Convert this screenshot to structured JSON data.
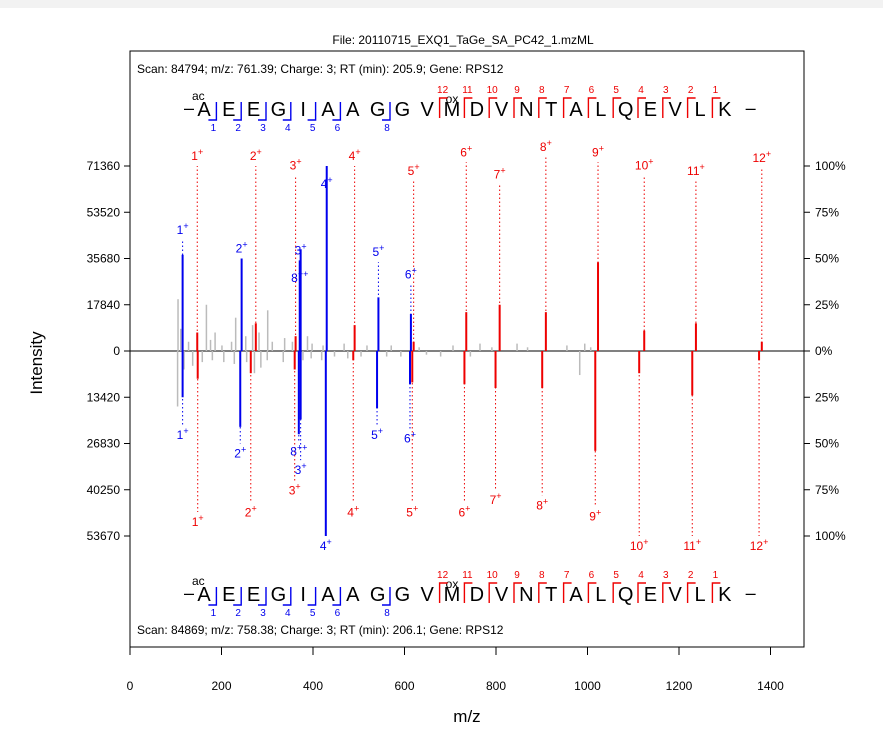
{
  "chart_data": {
    "type": "mirror_spectrum",
    "title": "File: 20110715_EXQ1_TaGe_SA_PC42_1.mzML",
    "xlabel": "m/z",
    "ylabel": "Intensity",
    "xlim": [
      0,
      1480
    ],
    "xticks": [
      0,
      200,
      400,
      600,
      800,
      1000,
      1200,
      1400
    ],
    "top": {
      "scan_info": "Scan: 84794; m/z: 761.39; Charge: 3; RT (min): 205.9; Gene: RPS12",
      "ymax": 71360,
      "left_ticks": [
        {
          "label": "71360",
          "frac": 1.0
        },
        {
          "label": "53520",
          "frac": 0.75
        },
        {
          "label": "35680",
          "frac": 0.5
        },
        {
          "label": "17840",
          "frac": 0.25
        },
        {
          "label": "0",
          "frac": 0
        }
      ],
      "b_ions": [
        {
          "label": "1+",
          "mz": 115,
          "frac": 0.52,
          "ann_frac": 0.6
        },
        {
          "label": "2+",
          "mz": 244,
          "frac": 0.5,
          "ann_frac": 0.5
        },
        {
          "label": "3+",
          "mz": 373,
          "frac": 0.55,
          "ann_frac": 0.49,
          "dup": true
        },
        {
          "label": "8++",
          "mz": 371,
          "frac": 0.49,
          "ann_frac": 0.34
        },
        {
          "label": "4+",
          "mz": 430,
          "frac": 1.0,
          "ann_frac": 0.85
        },
        {
          "label": "5+",
          "mz": 543,
          "frac": 0.29,
          "ann_frac": 0.48
        },
        {
          "label": "6+",
          "mz": 614,
          "frac": 0.2,
          "ann_frac": 0.36
        }
      ],
      "y_ions": [
        {
          "label": "1+",
          "mz": 147,
          "ann_frac": 1.0,
          "frac": 0.1
        },
        {
          "label": "2+",
          "mz": 275,
          "ann_frac": 1.0,
          "frac": 0.15
        },
        {
          "label": "3+",
          "mz": 362,
          "ann_frac": 0.95,
          "frac": 0.08
        },
        {
          "label": "4+",
          "mz": 491,
          "ann_frac": 1.0,
          "frac": 0.14
        },
        {
          "label": "5+",
          "mz": 620,
          "ann_frac": 0.92,
          "frac": 0.05
        },
        {
          "label": "6+",
          "mz": 735,
          "ann_frac": 1.02,
          "frac": 0.21
        },
        {
          "label": "7+",
          "mz": 808,
          "ann_frac": 0.9,
          "frac": 0.25
        },
        {
          "label": "8+",
          "mz": 909,
          "ann_frac": 1.05,
          "frac": 0.21
        },
        {
          "label": "9+",
          "mz": 1023,
          "ann_frac": 1.02,
          "frac": 0.48
        },
        {
          "label": "10+",
          "mz": 1124,
          "ann_frac": 0.95,
          "frac": 0.11
        },
        {
          "label": "11+",
          "mz": 1237,
          "ann_frac": 0.92,
          "frac": 0.15
        },
        {
          "label": "12+",
          "mz": 1381,
          "ann_frac": 0.99,
          "frac": 0.05
        }
      ]
    },
    "bottom": {
      "scan_info": "Scan: 84869; m/z: 758.38; Charge: 3; RT (min): 206.1; Gene: RPS12",
      "ymax": 53670,
      "left_ticks": [
        {
          "label": "13420",
          "frac": 0.25
        },
        {
          "label": "26830",
          "frac": 0.5
        },
        {
          "label": "40250",
          "frac": 0.75
        },
        {
          "label": "53670",
          "frac": 1.0
        }
      ],
      "b_ions": [
        {
          "label": "1+",
          "mz": 115,
          "frac": 0.25,
          "ann_frac": 0.4
        },
        {
          "label": "2+",
          "mz": 241,
          "frac": 0.41,
          "ann_frac": 0.5
        },
        {
          "label": "8++",
          "mz": 369,
          "frac": 0.45,
          "ann_frac": 0.49
        },
        {
          "label": "3+",
          "mz": 373,
          "frac": 0.37,
          "ann_frac": 0.59
        },
        {
          "label": "4+",
          "mz": 428,
          "frac": 1.0,
          "ann_frac": 1.0
        },
        {
          "label": "5+",
          "mz": 540,
          "frac": 0.31,
          "ann_frac": 0.4
        },
        {
          "label": "6+",
          "mz": 612,
          "frac": 0.18,
          "ann_frac": 0.42
        }
      ],
      "y_ions": [
        {
          "label": "1+",
          "mz": 148,
          "frac": 0.15,
          "ann_frac": 0.87
        },
        {
          "label": "2+",
          "mz": 264,
          "frac": 0.12,
          "ann_frac": 0.82
        },
        {
          "label": "3+",
          "mz": 360,
          "frac": 0.1,
          "ann_frac": 0.7
        },
        {
          "label": "4+",
          "mz": 488,
          "frac": 0.05,
          "ann_frac": 0.82
        },
        {
          "label": "5+",
          "mz": 617,
          "frac": 0.17,
          "ann_frac": 0.82
        },
        {
          "label": "6+",
          "mz": 731,
          "frac": 0.18,
          "ann_frac": 0.82
        },
        {
          "label": "7+",
          "mz": 799,
          "frac": 0.2,
          "ann_frac": 0.75
        },
        {
          "label": "8+",
          "mz": 901,
          "frac": 0.2,
          "ann_frac": 0.78
        },
        {
          "label": "9+",
          "mz": 1017,
          "frac": 0.54,
          "ann_frac": 0.84
        },
        {
          "label": "10+",
          "mz": 1113,
          "frac": 0.12,
          "ann_frac": 1.0
        },
        {
          "label": "11+",
          "mz": 1229,
          "frac": 0.24,
          "ann_frac": 1.0
        },
        {
          "label": "12+",
          "mz": 1375,
          "frac": 0.05,
          "ann_frac": 1.0
        }
      ]
    },
    "right_ticks": [
      "100%",
      "75%",
      "50%",
      "25%",
      "0%",
      "25%",
      "50%",
      "75%",
      "100%"
    ],
    "background_peaks_top": [
      [
        105,
        0.28
      ],
      [
        111,
        0.12
      ],
      [
        128,
        0.05
      ],
      [
        167,
        0.25
      ],
      [
        176,
        0.06
      ],
      [
        186,
        0.1
      ],
      [
        201,
        0.03
      ],
      [
        222,
        0.05
      ],
      [
        231,
        0.18
      ],
      [
        253,
        0.08
      ],
      [
        268,
        0.14
      ],
      [
        282,
        0.1
      ],
      [
        301,
        0.22
      ],
      [
        311,
        0.05
      ],
      [
        338,
        0.07
      ],
      [
        355,
        0.05
      ],
      [
        388,
        0.08
      ],
      [
        398,
        0.04
      ],
      [
        422,
        0.03
      ],
      [
        468,
        0.04
      ],
      [
        518,
        0.03
      ],
      [
        571,
        0.03
      ],
      [
        632,
        0.02
      ],
      [
        706,
        0.03
      ],
      [
        765,
        0.04
      ],
      [
        791,
        0.02
      ],
      [
        846,
        0.04
      ],
      [
        869,
        0.02
      ],
      [
        955,
        0.03
      ],
      [
        994,
        0.04
      ],
      [
        1007,
        0.02
      ]
    ],
    "background_peaks_bottom": [
      [
        104,
        0.3
      ],
      [
        118,
        0.1
      ],
      [
        137,
        0.08
      ],
      [
        158,
        0.06
      ],
      [
        180,
        0.05
      ],
      [
        205,
        0.06
      ],
      [
        228,
        0.07
      ],
      [
        255,
        0.06
      ],
      [
        272,
        0.12
      ],
      [
        286,
        0.09
      ],
      [
        300,
        0.05
      ],
      [
        335,
        0.06
      ],
      [
        378,
        0.05
      ],
      [
        396,
        0.04
      ],
      [
        419,
        0.05
      ],
      [
        447,
        0.03
      ],
      [
        476,
        0.04
      ],
      [
        505,
        0.03
      ],
      [
        561,
        0.03
      ],
      [
        592,
        0.03
      ],
      [
        648,
        0.02
      ],
      [
        679,
        0.03
      ],
      [
        744,
        0.03
      ],
      [
        983,
        0.13
      ]
    ],
    "sequence": [
      "A",
      "E",
      "E",
      "G",
      "I",
      "A",
      "A",
      "G",
      "G",
      "V",
      "M",
      "D",
      "V",
      "N",
      "T",
      "A",
      "L",
      "Q",
      "E",
      "V",
      "L",
      "K"
    ],
    "seq_prefix": "ac",
    "seq_mod": "ox",
    "seq_b_numbers": [
      "1",
      "2",
      "3",
      "4",
      "5",
      "6",
      "8"
    ],
    "seq_y_numbers": [
      "12",
      "11",
      "10",
      "9",
      "8",
      "7",
      "6",
      "5",
      "4",
      "3",
      "2",
      "1"
    ],
    "colors": {
      "b_ion": "#0000ee",
      "y_ion": "#ee0000",
      "background": "#bbbbbb",
      "axis": "#000000"
    }
  }
}
